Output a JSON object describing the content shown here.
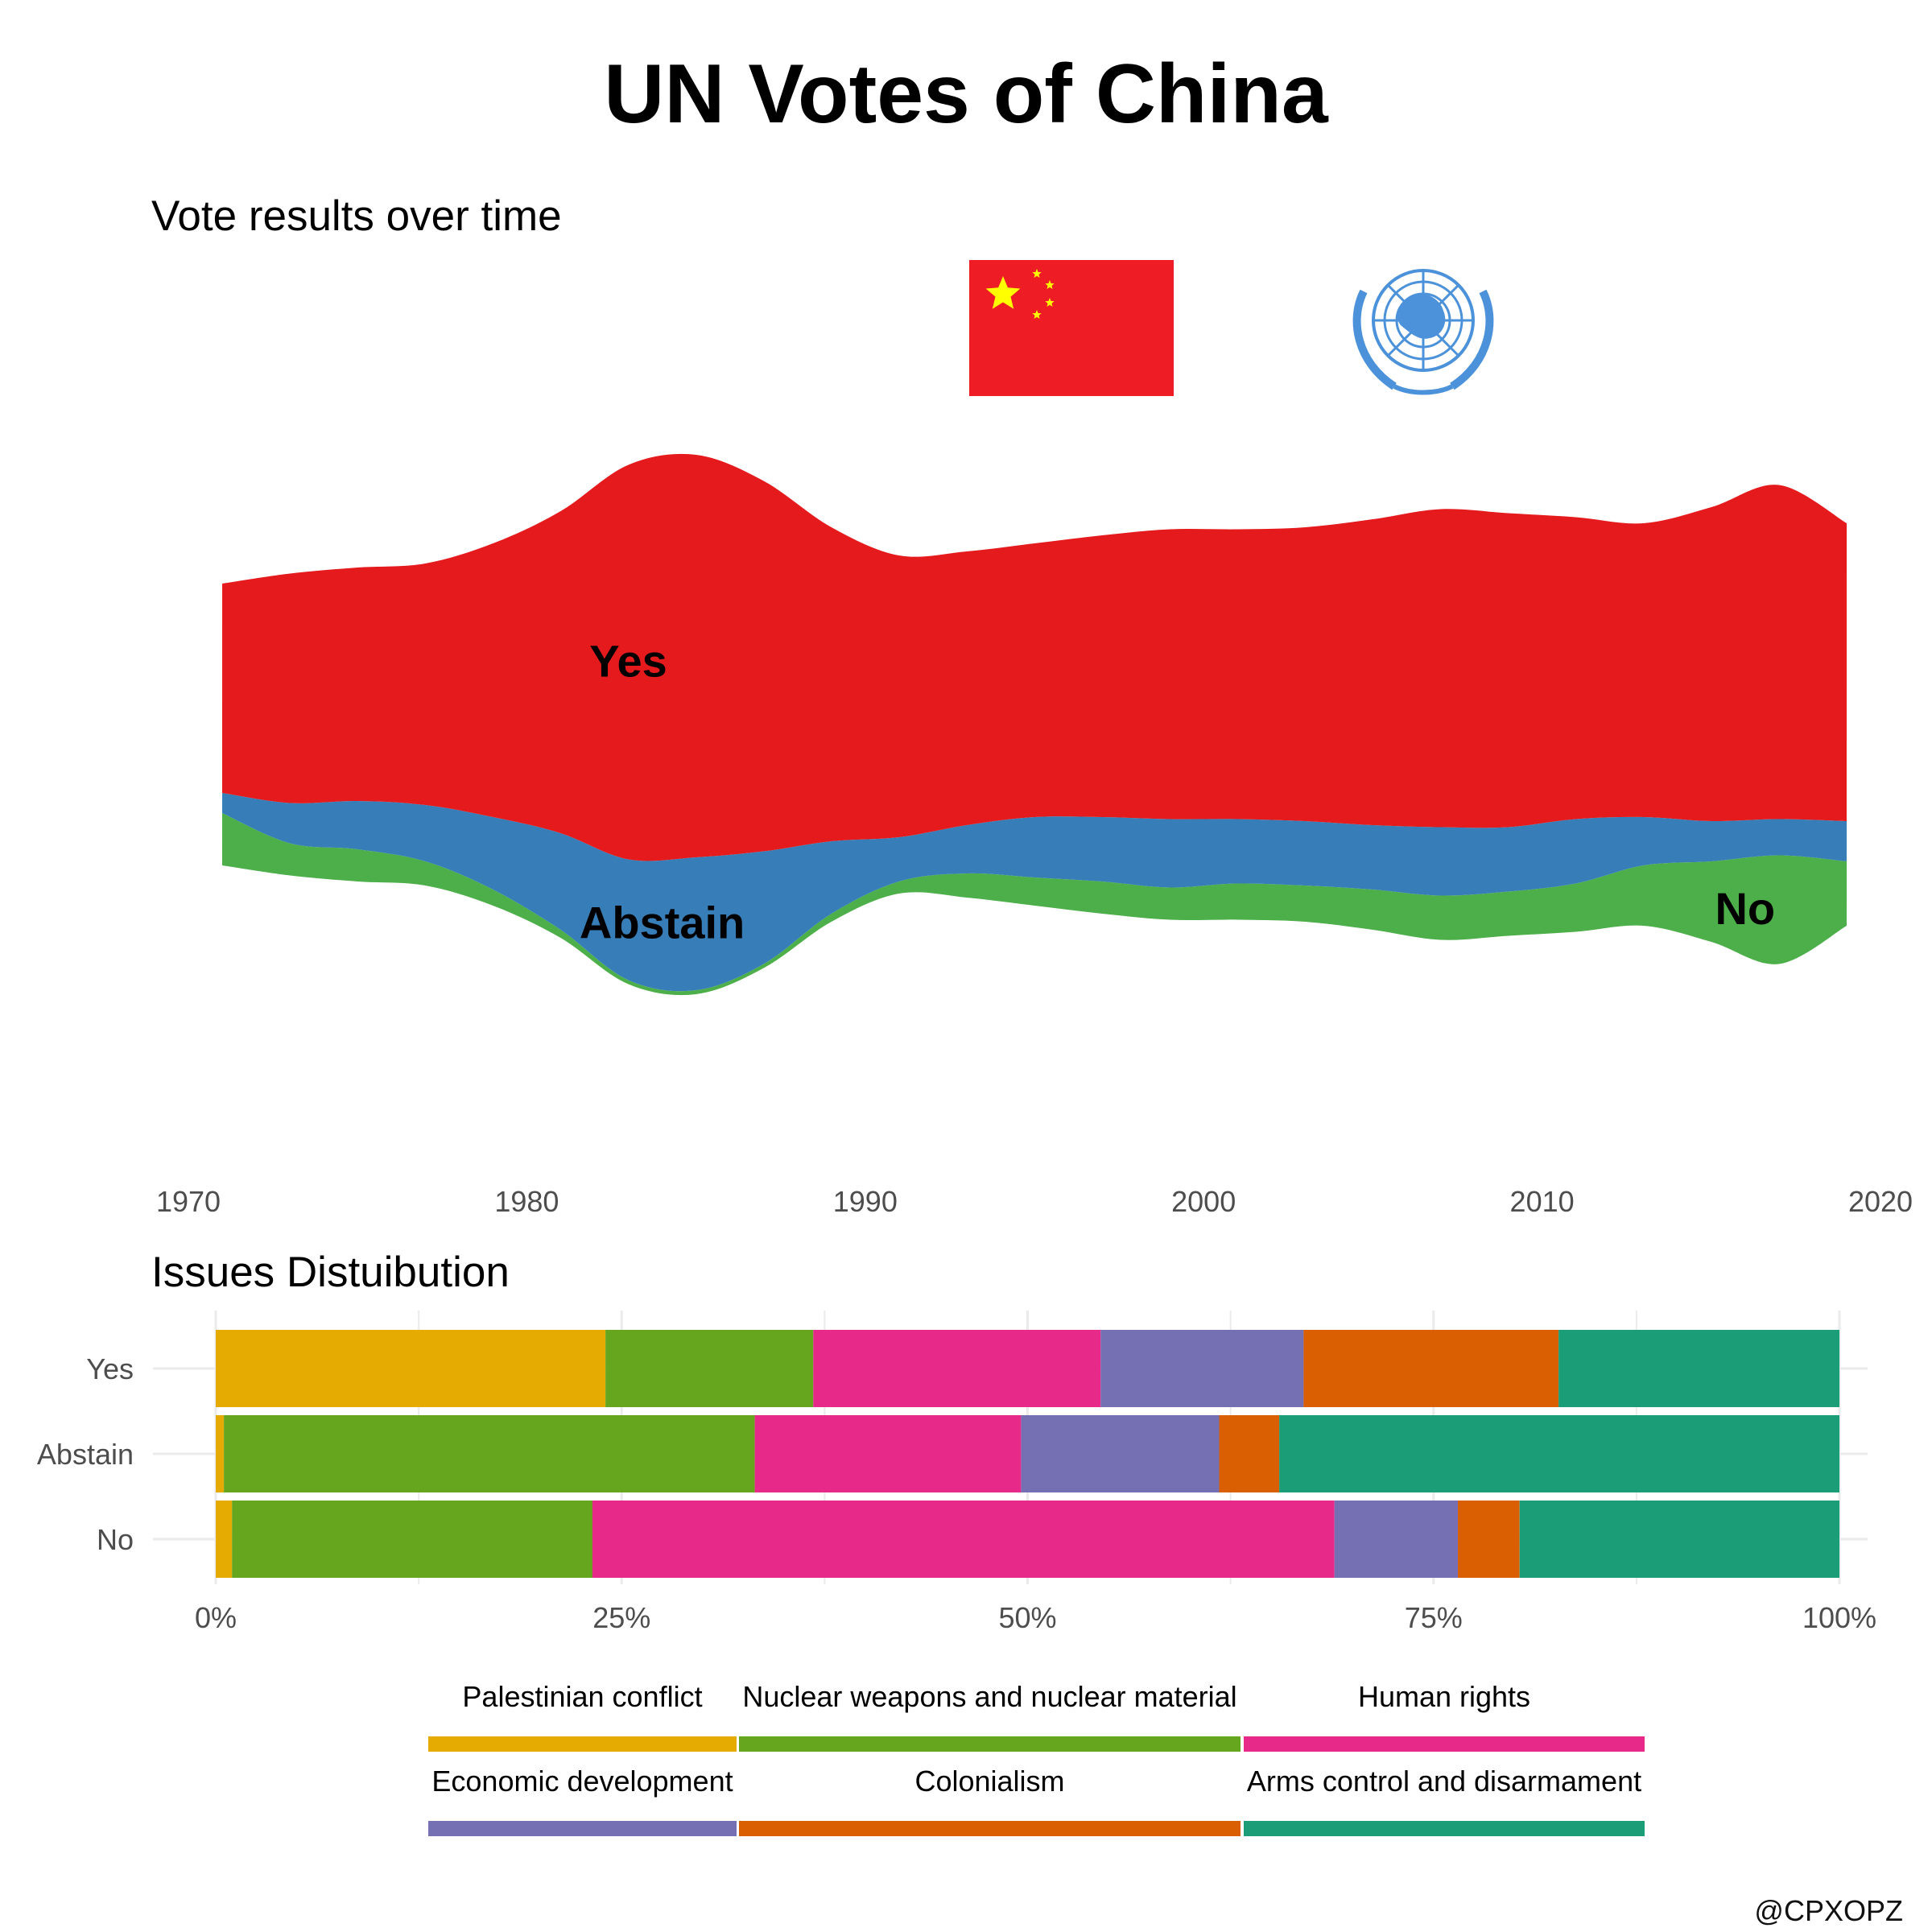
{
  "title": "UN Votes of China",
  "credit": "@CPXOPZ",
  "icons": [
    "china-flag-icon",
    "un-emblem-icon"
  ],
  "chart_data": [
    {
      "type": "area",
      "subtitle": "Vote results over time",
      "layout": "streamgraph",
      "xlim": [
        1970,
        2020
      ],
      "x_ticks": [
        "1970",
        "1980",
        "1990",
        "2000",
        "2010",
        "2020"
      ],
      "grid": false,
      "legend": "none (direct labels)",
      "x": [
        1971,
        1973,
        1975,
        1977,
        1979,
        1981,
        1983,
        1985,
        1987,
        1989,
        1991,
        1993,
        1995,
        1997,
        1999,
        2001,
        2003,
        2005,
        2007,
        2009,
        2011,
        2013,
        2015,
        2017,
        2019
      ],
      "series": [
        {
          "name": "No",
          "color": "#4daf4a",
          "values": [
            13,
            8,
            8,
            6,
            4,
            2,
            1,
            1,
            1,
            2,
            3,
            6,
            7,
            8,
            8,
            9,
            9,
            10,
            11,
            11,
            12,
            15,
            20,
            27,
            16
          ]
        },
        {
          "name": "Abstain",
          "color": "#377eb8",
          "values": [
            5,
            10,
            12,
            14,
            18,
            24,
            30,
            33,
            28,
            18,
            11,
            12,
            15,
            16,
            17,
            16,
            16,
            16,
            17,
            16,
            16,
            12,
            10,
            9,
            10
          ]
        },
        {
          "name": "Yes",
          "color": "#e41a1c",
          "values": [
            52,
            57,
            58,
            60,
            68,
            80,
            98,
            100,
            92,
            78,
            70,
            68,
            68,
            70,
            72,
            72,
            73,
            76,
            79,
            78,
            75,
            73,
            78,
            83,
            74
          ]
        }
      ],
      "labels": [
        "Yes",
        "Abstain",
        "No"
      ]
    },
    {
      "type": "bar",
      "orientation": "horizontal",
      "stacked": "percent",
      "subtitle": "Issues Distuibution",
      "categories": [
        "Yes",
        "Abstain",
        "No"
      ],
      "x_ticks": [
        "0%",
        "25%",
        "50%",
        "75%",
        "100%"
      ],
      "xlim": [
        0,
        100
      ],
      "grid": true,
      "legend": "bottom",
      "series": [
        {
          "name": "Palestinian conflict",
          "color": "#e6ab02",
          "values": [
            24,
            0.5,
            1
          ]
        },
        {
          "name": "Nuclear weapons and nuclear material",
          "color": "#66a61e",
          "values": [
            12.8,
            32.7,
            22.2
          ]
        },
        {
          "name": "Human rights",
          "color": "#e7298a",
          "values": [
            17.7,
            16.4,
            45.7
          ]
        },
        {
          "name": "Economic development",
          "color": "#7570b3",
          "values": [
            12.5,
            12.2,
            7.6
          ]
        },
        {
          "name": "Colonialism",
          "color": "#d95f02",
          "values": [
            15.7,
            3.7,
            3.8
          ]
        },
        {
          "name": "Arms control and disarmament",
          "color": "#1b9e77",
          "values": [
            17.3,
            34.5,
            19.7
          ]
        }
      ]
    }
  ]
}
